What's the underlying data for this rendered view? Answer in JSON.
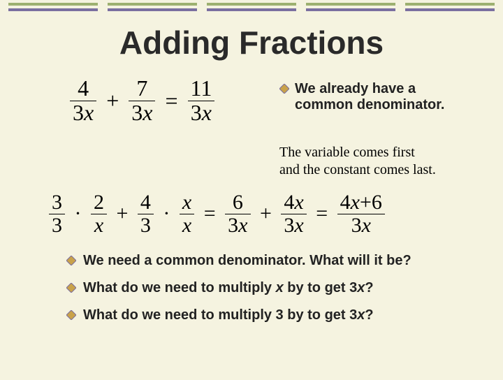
{
  "border_segments": [
    {
      "top": "#9cb070",
      "bottom": "#7a6fa0"
    },
    {
      "top": "#9cb070",
      "bottom": "#7a6fa0"
    },
    {
      "top": "#9cb070",
      "bottom": "#7a6fa0"
    },
    {
      "top": "#9cb070",
      "bottom": "#7a6fa0"
    },
    {
      "top": "#9cb070",
      "bottom": "#7a6fa0"
    }
  ],
  "title": "Adding Fractions",
  "eq1": {
    "f1": {
      "num": "4",
      "den_a": "3",
      "den_v": "x"
    },
    "op1": "+",
    "f2": {
      "num": "7",
      "den_a": "3",
      "den_v": "x"
    },
    "op2": "=",
    "f3": {
      "num": "11",
      "den_a": "3",
      "den_v": "x"
    }
  },
  "bullet1_a": "We already have a",
  "bullet1_b": "common denominator.",
  "note_a": "The variable comes first",
  "note_b": "and the constant comes last.",
  "eq2": {
    "p1a": {
      "num": "3",
      "den": "3"
    },
    "dot": "·",
    "p1b": {
      "num": "2",
      "den": "x",
      "den_italic": true
    },
    "plus": "+",
    "p2a": {
      "num": "4",
      "den": "3"
    },
    "p2b": {
      "num": "x",
      "num_italic": true,
      "den": "x",
      "den_italic": true
    },
    "eq": "=",
    "r1": {
      "num": "6",
      "den_a": "3",
      "den_v": "x"
    },
    "r2": {
      "num_a": "4",
      "num_v": "x",
      "den_a": "3",
      "den_v": "x"
    },
    "r3": {
      "num_a": "4",
      "num_v": "x",
      "num_plus": "+",
      "num_c": "6",
      "den_a": "3",
      "den_v": "x"
    }
  },
  "bullets": [
    {
      "pre": "We need a common denominator.  What will it be?",
      "var": "",
      "post": ""
    },
    {
      "pre": "What do we need to multiply ",
      "var": "x",
      "post": " by to get 3",
      "var2": "x",
      "post2": "?"
    },
    {
      "pre": "What do we need to multiply 3 by to get 3",
      "var": "x",
      "post": "?",
      "var2": "",
      "post2": ""
    }
  ],
  "diamond": {
    "fill": "#c9a24a",
    "stroke": "#7a6fa0"
  }
}
